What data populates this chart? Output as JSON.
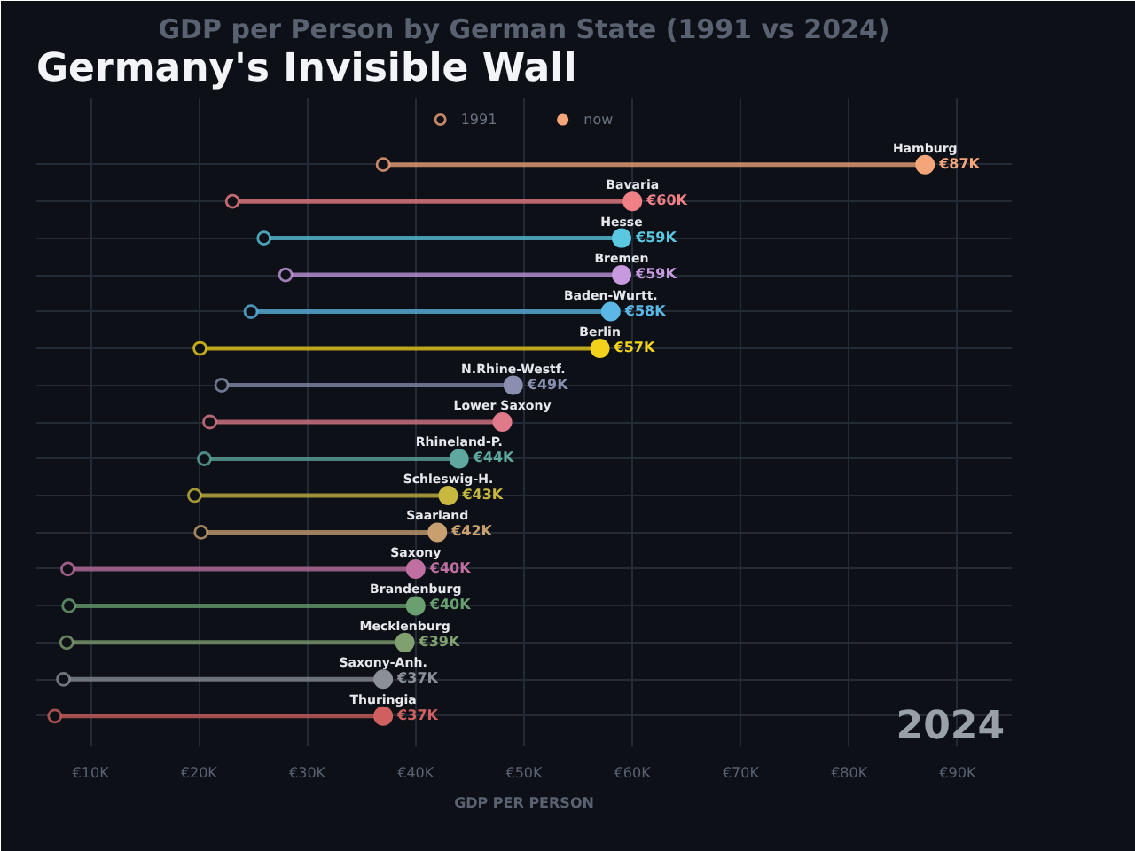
{
  "chart_data": {
    "type": "lollipop",
    "orientation": "horizontal",
    "title": "GDP per Person by German State (1991 vs 2024)",
    "subtitle": "Germany's Invisible Wall",
    "xlabel": "GDP PER PERSON",
    "annotations": [
      "2024"
    ],
    "categories": [
      "Hamburg",
      "Bavaria",
      "Hesse",
      "Bremen",
      "Baden-Wurtt.",
      "Berlin",
      "N.Rhine-Westf.",
      "Lower Saxony",
      "Rhineland-P.",
      "Schleswig-H.",
      "Saarland",
      "Saxony",
      "Brandenburg",
      "Mecklenburg",
      "Saxony-Anh.",
      "Thuringia"
    ],
    "series": [
      {
        "name": "1991",
        "type": "scatter",
        "marker": "circle",
        "colors": [
          "#f4a57a",
          "#f07f86",
          "#5ac8e0",
          "#c79ae0",
          "#5bb8e6",
          "#f2d21b",
          "#8a8fb0",
          "#e07a8a",
          "#5fa8a0",
          "#c8b840",
          "#c8a070",
          "#c070a0",
          "#6aa070",
          "#80a070",
          "#8a8f98",
          "#d06060"
        ],
        "values": [
          37.0,
          23.1,
          26.0,
          28.0,
          24.8,
          20.1,
          22.1,
          21.0,
          20.5,
          19.6,
          20.2,
          7.9,
          8.0,
          7.8,
          7.5,
          6.7
        ]
      },
      {
        "name": "now",
        "marker": "circle",
        "colors": [
          "#f4a57a",
          "#f07f86",
          "#5ac8e0",
          "#c79ae0",
          "#5bb8e6",
          "#f2d21b",
          "#8a8fb0",
          "#e07a8a",
          "#5fa8a0",
          "#c8b840",
          "#c8a070",
          "#c070a0",
          "#6aa070",
          "#80a070",
          "#8a8f98",
          "#d06060"
        ],
        "values": [
          87,
          60,
          59,
          59,
          58,
          57,
          49,
          48,
          44,
          43,
          42,
          40,
          40,
          39,
          37,
          37
        ],
        "value_labels": [
          "€87K",
          "€60K",
          "€59K",
          "€59K",
          "€58K",
          "€57K",
          "€49K",
          null,
          "€44K",
          "€43K",
          "€42K",
          "€40K",
          "€40K",
          "€39K",
          "€37K",
          "€37K"
        ]
      }
    ],
    "xlim": [
      5,
      95
    ],
    "xticks": [
      {
        "value": 10,
        "label": "€10K"
      },
      {
        "value": 20,
        "label": "€20K"
      },
      {
        "value": 30,
        "label": "€30K"
      },
      {
        "value": 40,
        "label": "€40K"
      },
      {
        "value": 50,
        "label": "€50K"
      },
      {
        "value": 60,
        "label": "€60K"
      },
      {
        "value": 70,
        "label": "€70K"
      },
      {
        "value": 80,
        "label": "€80K"
      },
      {
        "value": 90,
        "label": "€90K"
      }
    ],
    "tick_labels": "x",
    "grid": true,
    "legend": "top"
  }
}
